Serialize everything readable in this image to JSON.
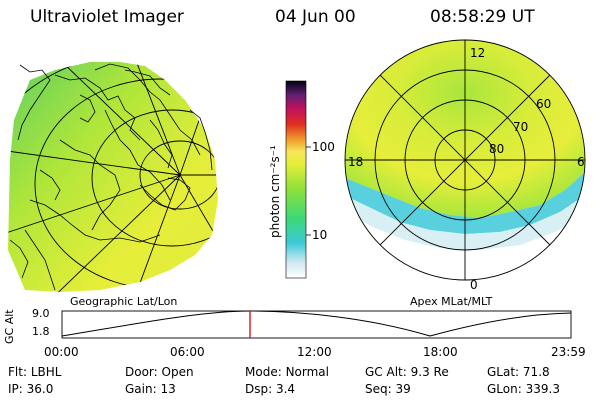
{
  "header": {
    "title": "Ultraviolet Imager",
    "date": "04 Jun 00",
    "time": "08:58:29 UT"
  },
  "left_panel": {
    "caption": "Geographic Lat/Lon"
  },
  "right_panel": {
    "caption": "Apex MLat/MLT",
    "mlt_labels": {
      "top": "12",
      "left": "18",
      "right": "6",
      "bottom": "0"
    },
    "lat_labels": [
      "60",
      "70",
      "80"
    ]
  },
  "colorbar": {
    "unit_label": "photon cm⁻²s⁻¹",
    "tick_labels": [
      "100",
      "10"
    ],
    "scale": "log"
  },
  "altitude_plot": {
    "ylabel": "GC Alt",
    "y_ticks": [
      "9.0",
      "1.8"
    ],
    "x_ticks": [
      "00:00",
      "06:00",
      "12:00",
      "18:00",
      "23:59"
    ],
    "current_marker_time": "08:58"
  },
  "footer": {
    "row1": [
      {
        "label": "Flt:",
        "value": "LBHL"
      },
      {
        "label": "Door:",
        "value": "Open"
      },
      {
        "label": "Mode:",
        "value": "Normal"
      },
      {
        "label": "GC Alt:",
        "value": "9.3 Re"
      },
      {
        "label": "GLat:",
        "value": "71.8"
      }
    ],
    "row2": [
      {
        "label": "IP:",
        "value": "36.0"
      },
      {
        "label": "Gain:",
        "value": "13"
      },
      {
        "label": "Dsp:",
        "value": "3.4"
      },
      {
        "label": "Seq:",
        "value": "39"
      },
      {
        "label": "GLon:",
        "value": "339.3"
      }
    ]
  },
  "colors": {
    "marker": "#e00000",
    "green": "#8ee03a",
    "yellow": "#e6ee3a",
    "cyan": "#3cc8d8"
  }
}
